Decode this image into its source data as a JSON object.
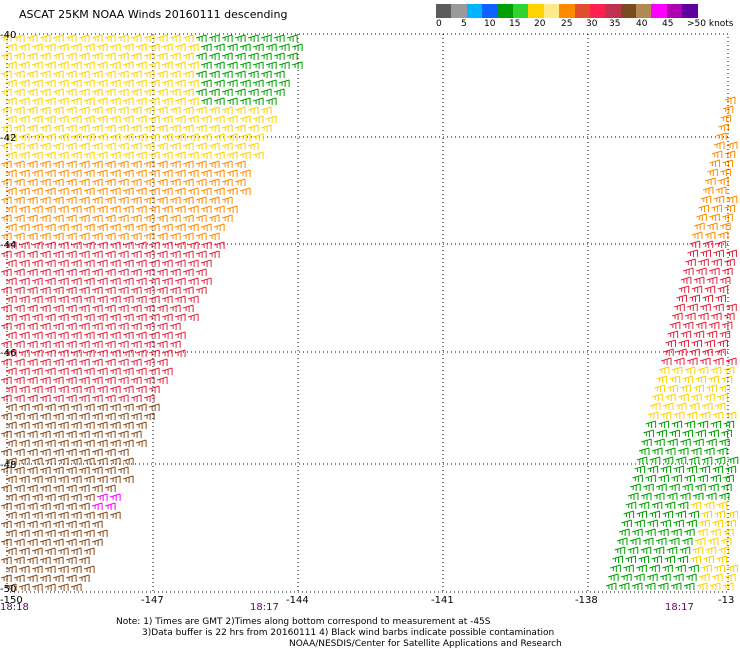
{
  "title": "ASCAT 25KM NOAA Winds 20160111 descending",
  "legend": {
    "colors": [
      "#5c5c5c",
      "#9a9a9a",
      "#00b4ff",
      "#1060ff",
      "#00a000",
      "#32d232",
      "#ffd200",
      "#ffe98a",
      "#ff8c00",
      "#e05030",
      "#ff2050",
      "#c03050",
      "#7a4a20",
      "#b08a50",
      "#ff00ff",
      "#b000b0",
      "#6000a0"
    ],
    "labels": [
      "0",
      "5",
      "10",
      "15",
      "20",
      "25",
      "30",
      "35",
      "40",
      "45",
      ">50 knots"
    ]
  },
  "axes": {
    "lon_labels": [
      "-150",
      "-147",
      "-144",
      "-141",
      "-138",
      "-13"
    ],
    "lat_labels": [
      "-40",
      "-42",
      "-44",
      "-46",
      "-48",
      "-50"
    ],
    "time_labels": [
      "18:18",
      "18:17",
      "18:17"
    ]
  },
  "notes": {
    "line1": "Note: 1) Times are GMT 2)Times along bottom correspond to measurement at -45S",
    "line2": "3)Data buffer is 22 hrs from 20160111 4) Black wind barbs indicate possible contamination",
    "line3": "NOAA/NESDIS/Center for Satellite Applications and Research"
  },
  "swaths": {
    "left_bands": [
      {
        "speed_label": "20",
        "color": "#00a000"
      },
      {
        "speed_label": "25",
        "color": "#ffd200"
      },
      {
        "speed_label": "30",
        "color": "#ff8c00"
      },
      {
        "speed_label": "35",
        "color": "#e02840"
      },
      {
        "speed_label": "40",
        "color": "#8a4a1a"
      },
      {
        "speed_label": "45",
        "color": "#ff00ff"
      }
    ],
    "right_bands": [
      {
        "speed_label": "30",
        "color": "#ff8c00"
      },
      {
        "speed_label": "35",
        "color": "#e02840"
      },
      {
        "speed_label": "25",
        "color": "#ffd200"
      },
      {
        "speed_label": "20",
        "color": "#00a000"
      }
    ]
  }
}
